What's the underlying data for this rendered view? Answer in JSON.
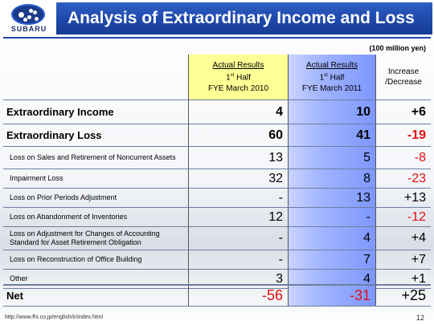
{
  "brand": {
    "name": "SUBARU"
  },
  "title": "Analysis of Extraordinary Income and Loss",
  "unit_note": "(100 million yen)",
  "columns": {
    "actual_2010": {
      "line1": "Actual Results",
      "line2_prefix": "1",
      "line2_sup": "st",
      "line2_suffix": " Half",
      "line3": "FYE March 2010"
    },
    "actual_2011": {
      "line1": "Actual Results",
      "line2_prefix": "1",
      "line2_sup": "st",
      "line2_suffix": " Half",
      "line3": "FYE March 2011"
    },
    "change": {
      "line1": "Increase",
      "line2": "/Decrease"
    }
  },
  "rows": [
    {
      "label": "Extraordinary Income",
      "a": "4",
      "b": "10",
      "c": "+6"
    },
    {
      "label": "Extraordinary Loss",
      "a": "60",
      "b": "41",
      "c": "-19"
    },
    {
      "label": "Loss on Sales and Retirement of Noncurrent Assets",
      "a": "13",
      "b": "5",
      "c": "-8"
    },
    {
      "label": "Impairment Loss",
      "a": "32",
      "b": "8",
      "c": "-23"
    },
    {
      "label": "Loss on Prior Periods Adjustment",
      "a": "-",
      "b": "13",
      "c": "+13"
    },
    {
      "label": "Loss on Abandonment of Inventories",
      "a": "12",
      "b": "-",
      "c": "-12"
    },
    {
      "label": "Loss on Adjustment for Changes of Accounting Standard for Asset Retirement Obligation",
      "a": "-",
      "b": "4",
      "c": "+4"
    },
    {
      "label": "Loss on Reconstruction of Office Building",
      "a": "-",
      "b": "7",
      "c": "+7"
    },
    {
      "label": "Other",
      "a": "3",
      "b": "4",
      "c": "+1"
    },
    {
      "label": "Net",
      "a": "-56",
      "b": "-31",
      "c": "+25"
    }
  ],
  "footer": {
    "url": "http://www.fhi.co.jp/english/ir/index.html",
    "page": "12"
  },
  "colors": {
    "title_bar": "#1d47a8",
    "negative": "#e01010",
    "highlight_2010": "#ffff96",
    "highlight_2011": "#9fb3ff"
  }
}
